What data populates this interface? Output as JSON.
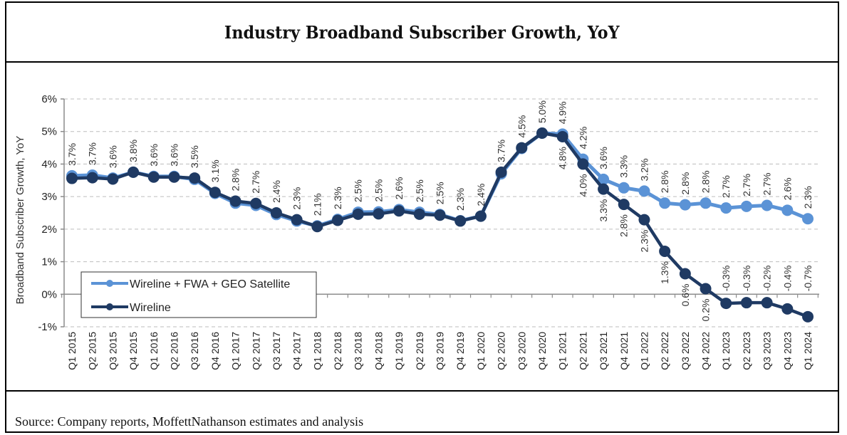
{
  "source": "Source: Company reports, MoffettNathanson estimates and analysis",
  "colors": {
    "wireline_fwa_geo": "#5b93d6",
    "wireline": "#1f3a63",
    "grid": "#bdbdbd",
    "axis": "#8c8c8c"
  },
  "chart_data": {
    "type": "line",
    "title": "Industry Broadband Subscriber Growth, YoY",
    "xlabel": "",
    "ylabel": "Broadband Subscriber Growth, YoY",
    "ylim": [
      -0.01,
      0.06
    ],
    "yticks": [
      -0.01,
      0,
      0.01,
      0.02,
      0.03,
      0.04,
      0.05,
      0.06
    ],
    "ytick_labels": [
      "-1%",
      "0%",
      "1%",
      "2%",
      "3%",
      "4%",
      "5%",
      "6%"
    ],
    "grid": "horizontal-dashed",
    "legend_position": "bottom-left",
    "categories": [
      "Q1 2015",
      "Q2 2015",
      "Q3 2015",
      "Q4 2015",
      "Q1 2016",
      "Q2 2016",
      "Q3 2016",
      "Q4 2016",
      "Q1 2017",
      "Q2 2017",
      "Q3 2017",
      "Q4 2017",
      "Q1 2018",
      "Q2 2018",
      "Q3 2018",
      "Q4 2018",
      "Q1 2019",
      "Q2 2019",
      "Q3 2019",
      "Q4 2019",
      "Q1 2020",
      "Q2 2020",
      "Q3 2020",
      "Q4 2020",
      "Q1 2021",
      "Q2 2021",
      "Q3 2021",
      "Q4 2021",
      "Q1 2022",
      "Q2 2022",
      "Q3 2022",
      "Q4 2022",
      "Q1 2023",
      "Q2 2023",
      "Q3 2023",
      "Q4 2023",
      "Q1 2024"
    ],
    "series": [
      {
        "name": "Wireline + FWA + GEO Satellite",
        "color_key": "wireline_fwa_geo",
        "values": [
          0.037,
          0.037,
          0.036,
          0.038,
          0.036,
          0.036,
          0.035,
          0.031,
          0.028,
          0.027,
          0.024,
          0.023,
          0.021,
          0.023,
          0.025,
          0.025,
          0.026,
          0.025,
          0.025,
          0.023,
          0.024,
          0.037,
          0.045,
          0.05,
          0.049,
          0.042,
          0.036,
          0.033,
          0.032,
          0.028,
          0.028,
          0.028,
          0.027,
          0.027,
          0.027,
          0.026,
          0.023
        ],
        "labels": [
          "3.7%",
          "3.7%",
          "3.6%",
          "3.8%",
          "3.6%",
          "3.6%",
          "3.5%",
          "3.1%",
          "2.8%",
          "2.7%",
          "2.4%",
          "2.3%",
          "2.1%",
          "2.3%",
          "2.5%",
          "2.5%",
          "2.6%",
          "2.5%",
          "2.5%",
          "2.3%",
          "2.4%",
          "3.7%",
          "4.5%",
          "5.0%",
          "4.9%",
          "4.2%",
          "3.6%",
          "3.3%",
          "3.2%",
          "2.8%",
          "2.8%",
          "2.8%",
          "2.7%",
          "2.7%",
          "2.7%",
          "2.6%",
          "2.3%"
        ],
        "plotted_values": [
          0.0364,
          0.0366,
          0.0357,
          0.0375,
          0.0362,
          0.0362,
          0.0353,
          0.031,
          0.028,
          0.0273,
          0.0245,
          0.0225,
          0.021,
          0.023,
          0.0252,
          0.0253,
          0.026,
          0.0252,
          0.0245,
          0.0226,
          0.024,
          0.037,
          0.0448,
          0.0495,
          0.0492,
          0.0415,
          0.0353,
          0.0327,
          0.0317,
          0.028,
          0.0275,
          0.028,
          0.0265,
          0.027,
          0.0273,
          0.0258,
          0.0232
        ]
      },
      {
        "name": "Wireline",
        "color_key": "wireline",
        "values": [
          0.036,
          0.036,
          0.036,
          0.038,
          0.036,
          0.036,
          0.036,
          0.031,
          0.029,
          0.028,
          0.025,
          0.023,
          0.021,
          0.023,
          0.025,
          0.025,
          0.026,
          0.025,
          0.024,
          0.023,
          0.024,
          0.037,
          0.045,
          0.05,
          0.048,
          0.04,
          0.033,
          0.028,
          0.023,
          0.013,
          0.006,
          0.002,
          -0.003,
          -0.003,
          -0.002,
          -0.004,
          -0.007
        ],
        "labels": [
          "",
          "",
          "",
          "",
          "",
          "",
          "",
          "",
          "",
          "",
          "",
          "",
          "",
          "",
          "",
          "",
          "",
          "",
          "",
          "",
          "",
          "",
          "",
          "",
          "4.8%",
          "4.0%",
          "3.3%",
          "2.8%",
          "2.3%",
          "1.3%",
          "0.6%",
          "0.2%",
          "-0.3%",
          "-0.3%",
          "-0.2%",
          "-0.4%",
          "-0.7%"
        ],
        "plotted_values": [
          0.0356,
          0.0358,
          0.0354,
          0.0375,
          0.036,
          0.036,
          0.0357,
          0.0313,
          0.0286,
          0.0279,
          0.025,
          0.0229,
          0.0208,
          0.0227,
          0.0246,
          0.0247,
          0.0256,
          0.0246,
          0.0243,
          0.0225,
          0.024,
          0.0375,
          0.045,
          0.0495,
          0.0484,
          0.04,
          0.0323,
          0.0276,
          0.0229,
          0.0132,
          0.0063,
          0.0017,
          -0.0028,
          -0.0026,
          -0.0026,
          -0.0045,
          -0.0069
        ]
      }
    ]
  }
}
